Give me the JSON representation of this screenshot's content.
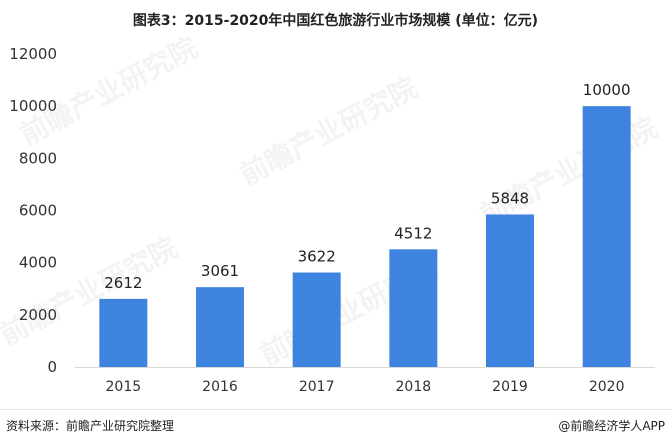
{
  "title": "图表3：2015-2020年中国红色旅游行业市场规模 (单位：亿元)",
  "source": "资料来源：前瞻产业研究院整理",
  "brand": "@前瞻经济学人APP",
  "watermark": "前瞻产业研究院",
  "colors": {
    "bar": "#3f83e0",
    "axis_text": "#333333",
    "label_text": "#222222"
  },
  "chart_data": {
    "type": "bar",
    "title": "图表3：2015-2020年中国红色旅游行业市场规模 (单位：亿元)",
    "categories": [
      "2015",
      "2016",
      "2017",
      "2018",
      "2019",
      "2020"
    ],
    "values": [
      2612,
      3061,
      3622,
      4512,
      5848,
      10000
    ],
    "value_labels": [
      "2612",
      "3061",
      "3622",
      "4512",
      "5848",
      "10000"
    ],
    "yticks": [
      "0",
      "2000",
      "4000",
      "6000",
      "8000",
      "10000",
      "12000"
    ],
    "ylim": [
      0,
      12000
    ],
    "xlabel": "",
    "ylabel": "",
    "grid": false,
    "legend": "none"
  }
}
